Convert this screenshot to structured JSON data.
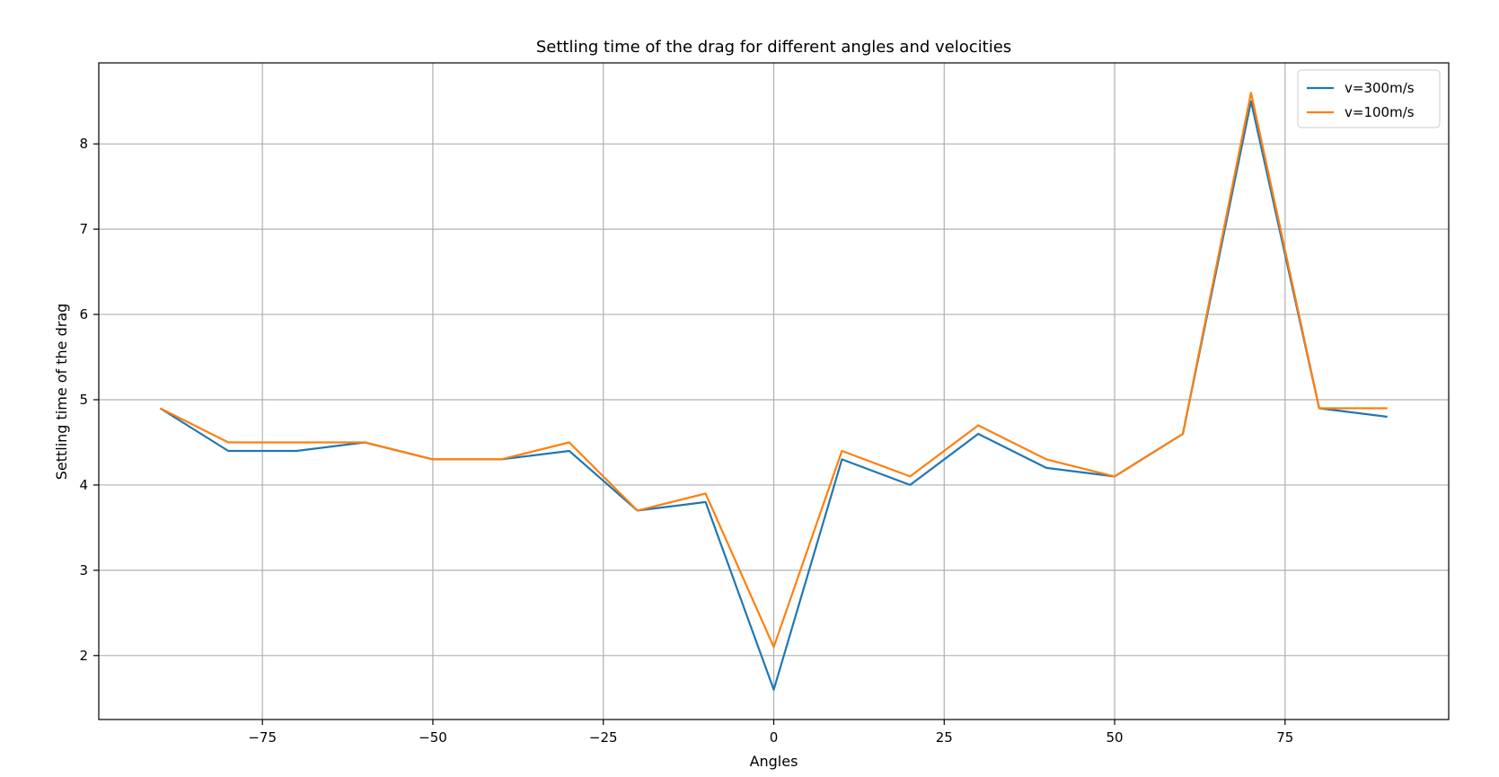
{
  "chart_data": {
    "type": "line",
    "title": "Settling time of the drag for different angles and velocities",
    "xlabel": "Angles",
    "ylabel": "Settling time of the drag",
    "x": [
      -90,
      -80,
      -70,
      -60,
      -50,
      -40,
      -30,
      -20,
      -10,
      0,
      10,
      20,
      30,
      40,
      50,
      60,
      70,
      80,
      90
    ],
    "series": [
      {
        "name": "v=300m/s",
        "color": "#1f77b4",
        "values": [
          4.9,
          4.4,
          4.4,
          4.5,
          4.3,
          4.3,
          4.4,
          3.7,
          3.8,
          1.6,
          4.3,
          4.0,
          4.6,
          4.2,
          4.1,
          4.6,
          8.5,
          4.9,
          4.8
        ]
      },
      {
        "name": "v=100m/s",
        "color": "#ff7f0e",
        "values": [
          4.9,
          4.5,
          4.5,
          4.5,
          4.3,
          4.3,
          4.5,
          3.7,
          3.9,
          2.1,
          4.4,
          4.1,
          4.7,
          4.3,
          4.1,
          4.6,
          8.6,
          4.9,
          4.9
        ]
      }
    ],
    "xlim": [
      -99,
      99
    ],
    "ylim": [
      1.25,
      8.95
    ],
    "xticks": [
      -75,
      -50,
      -25,
      0,
      25,
      50,
      75
    ],
    "xtick_labels": [
      "−75",
      "−50",
      "−25",
      "0",
      "25",
      "50",
      "75"
    ],
    "yticks": [
      2,
      3,
      4,
      5,
      6,
      7,
      8
    ],
    "ytick_labels": [
      "2",
      "3",
      "4",
      "5",
      "6",
      "7",
      "8"
    ],
    "grid": true,
    "legend_position": "top-right"
  }
}
